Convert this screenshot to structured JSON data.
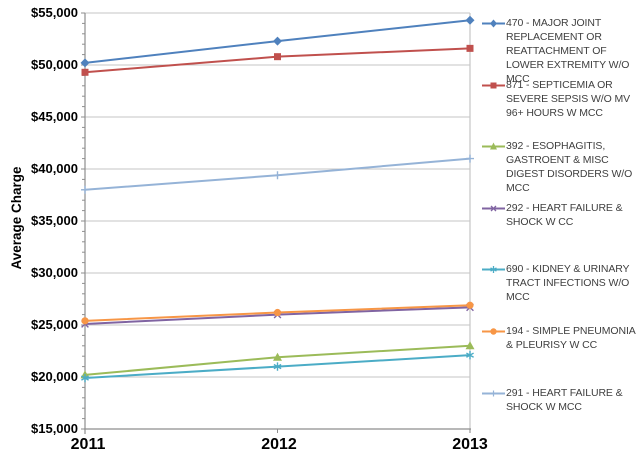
{
  "chart_data": {
    "type": "line",
    "title": "",
    "xlabel": "",
    "ylabel": "Average Charge",
    "x": [
      "2011",
      "2012",
      "2013"
    ],
    "ylim": [
      15000,
      55000
    ],
    "y_major_step": 5000,
    "y_minor_step": 1000,
    "y_tick_labels": [
      "$15,000",
      "$20,000",
      "$25,000",
      "$30,000",
      "$35,000",
      "$40,000",
      "$45,000",
      "$50,000",
      "$55,000"
    ],
    "grid": "horizontal-major",
    "legend_position": "right",
    "series": [
      {
        "name": "470 - MAJOR JOINT REPLACEMENT OR REATTACHMENT OF LOWER EXTREMITY W/O MCC",
        "marker": "diamond",
        "color": "#4F81BD",
        "values": [
          50200,
          52300,
          54300
        ]
      },
      {
        "name": "871 - SEPTICEMIA OR SEVERE SEPSIS W/O MV 96+ HOURS W MCC",
        "marker": "square",
        "color": "#C0504D",
        "values": [
          49300,
          50800,
          51600
        ]
      },
      {
        "name": "392 - ESOPHAGITIS, GASTROENT & MISC DIGEST DISORDERS W/O MCC",
        "marker": "triangle",
        "color": "#9BBB59",
        "values": [
          20200,
          21900,
          23000
        ]
      },
      {
        "name": "292 - HEART FAILURE & SHOCK W CC",
        "marker": "x",
        "color": "#8064A2",
        "values": [
          25100,
          26000,
          26700
        ]
      },
      {
        "name": "690 - KIDNEY & URINARY TRACT INFECTIONS W/O MCC",
        "marker": "asterisk",
        "color": "#4BACC6",
        "values": [
          19900,
          21000,
          22100
        ]
      },
      {
        "name": "194 - SIMPLE PNEUMONIA & PLEURISY W CC",
        "marker": "circle",
        "color": "#F79646",
        "values": [
          25400,
          26200,
          26900
        ]
      },
      {
        "name": "291 - HEART FAILURE & SHOCK W MCC",
        "marker": "plus",
        "color": "#95B3D7",
        "values": [
          38000,
          39400,
          41000
        ]
      }
    ],
    "style": {
      "grid_color": "#C6C6C6",
      "axis_color": "#8E8E8E",
      "tick_label_color": "#000000",
      "legend_text_color": "#3F3F3F",
      "background": "#FFFFFF"
    }
  }
}
